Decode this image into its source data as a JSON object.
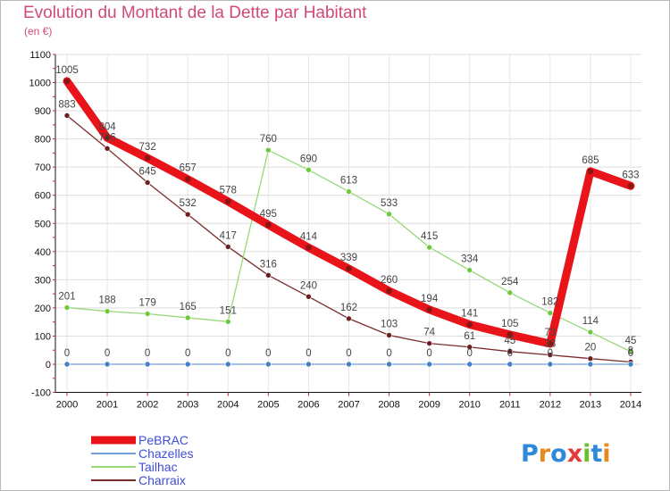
{
  "header": {
    "title": "Evolution du Montant de la Dette par Habitant",
    "subtitle": "(en €)"
  },
  "brand": {
    "text": "Proxiti"
  },
  "chart_data": {
    "type": "line",
    "title": "Evolution du Montant de la Dette par Habitant",
    "ylabel": "(en €)",
    "xlabel": "",
    "x": [
      "2000",
      "2001",
      "2002",
      "2003",
      "2004",
      "2005",
      "2006",
      "2007",
      "2008",
      "2009",
      "2010",
      "2011",
      "2012",
      "2013",
      "2014"
    ],
    "ylim": [
      -100,
      1100
    ],
    "yticks": [
      -100,
      0,
      100,
      200,
      300,
      400,
      500,
      600,
      700,
      800,
      900,
      1000,
      1100
    ],
    "legend_position": "bottom-left",
    "series": [
      {
        "name": "PeBRAC",
        "color": "#e8141a",
        "marker": "#8b1414",
        "width": "thick",
        "values": [
          1005,
          804,
          732,
          657,
          578,
          495,
          414,
          339,
          260,
          194,
          141,
          105,
          73,
          685,
          633
        ],
        "labels": [
          "1005",
          "804",
          "732",
          "657",
          "578",
          "495",
          "414",
          "339",
          "260",
          "194",
          "141",
          "105",
          "73",
          "685",
          "633"
        ]
      },
      {
        "name": "Chazelles",
        "color": "#6f9fd6",
        "marker": "#3f80c4",
        "width": "thin",
        "values": [
          0,
          0,
          0,
          0,
          0,
          0,
          0,
          0,
          0,
          0,
          0,
          0,
          0,
          0,
          0
        ],
        "labels": [
          "0",
          "0",
          "0",
          "0",
          "0",
          "0",
          "0",
          "0",
          "0",
          "0",
          "0",
          "0",
          "0",
          "",
          "0"
        ]
      },
      {
        "name": "Tailhac",
        "color": "#98d878",
        "marker": "#6ec83e",
        "width": "thin",
        "values": [
          201,
          188,
          179,
          165,
          151,
          760,
          690,
          613,
          533,
          415,
          334,
          254,
          182,
          114,
          45
        ],
        "labels": [
          "201",
          "188",
          "179",
          "165",
          "151",
          "760",
          "690",
          "613",
          "533",
          "415",
          "334",
          "254",
          "182",
          "114",
          "45"
        ]
      },
      {
        "name": "Charraix",
        "color": "#7a2c2c",
        "marker": "#6b1f1f",
        "width": "thin",
        "values": [
          883,
          766,
          645,
          532,
          417,
          316,
          240,
          162,
          103,
          74,
          61,
          45,
          33,
          20,
          8
        ],
        "labels": [
          "883",
          "766",
          "645",
          "532",
          "417",
          "316",
          "240",
          "162",
          "103",
          "74",
          "61",
          "45",
          "33",
          "20",
          "8"
        ]
      }
    ]
  }
}
